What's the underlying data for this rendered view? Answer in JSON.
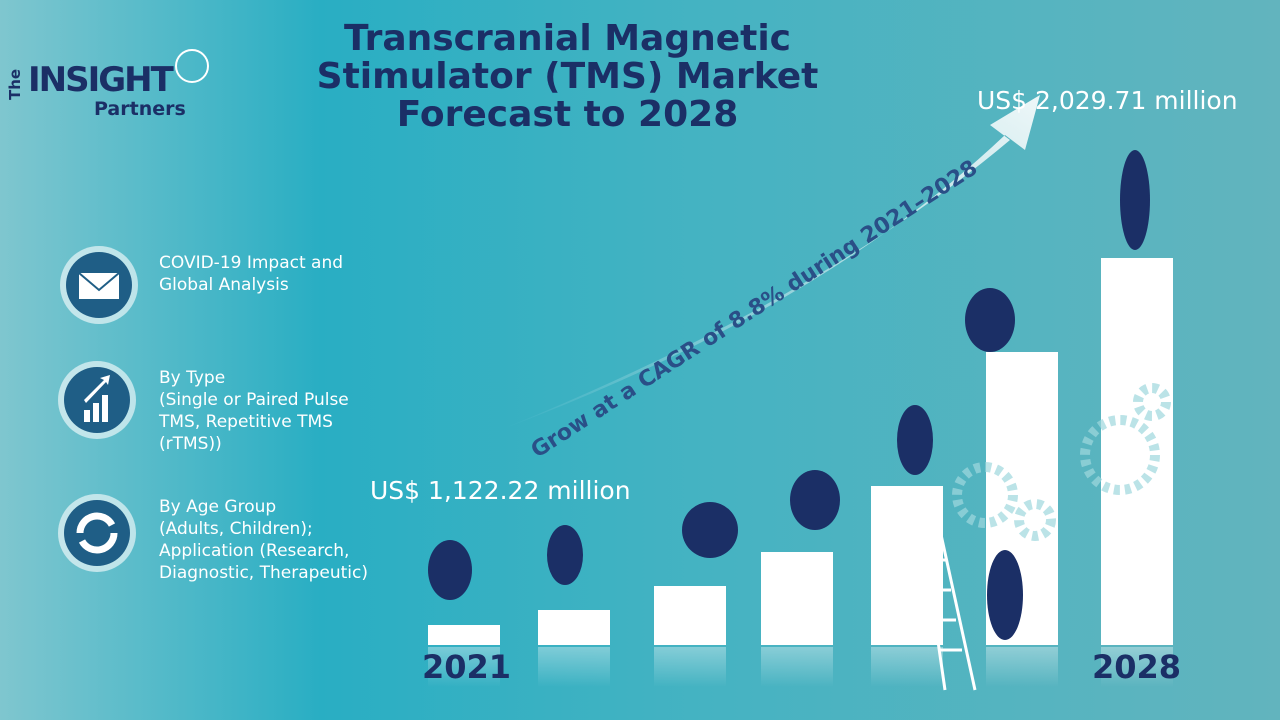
{
  "logo": {
    "prefix": "The",
    "brand": "INSIGHT",
    "suffix": "Partners"
  },
  "title": "Transcranial Magnetic Stimulator (TMS) Market Forecast to 2028",
  "start_value": "US$ 1,122.22 million",
  "end_value": "US$ 2,029.71 million",
  "growth": "Grow at a CAGR of 8.8% during 2021–2028",
  "start_year": "2021",
  "end_year": "2028",
  "segments": [
    {
      "heading": "COVID-19 Impact and Global Analysis",
      "detail": null
    },
    {
      "heading": "By Type",
      "detail": "(Single or Paired Pulse TMS, Repetitive TMS (rTMS))"
    },
    {
      "heading": "By Age Group",
      "detail": "(Adults, Children); Application (Research, Diagnostic, Therapeutic)"
    }
  ]
}
